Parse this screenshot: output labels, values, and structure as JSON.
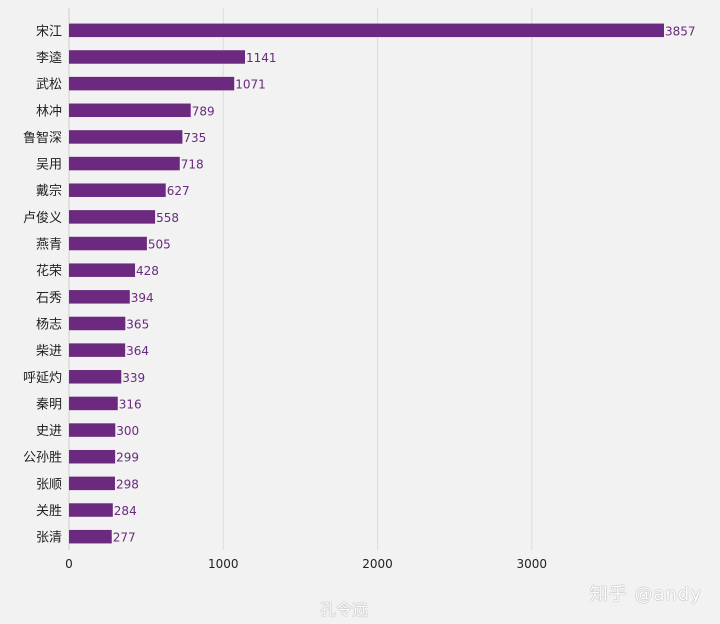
{
  "chart_data": {
    "type": "bar",
    "orientation": "horizontal",
    "categories": [
      "宋江",
      "李逵",
      "武松",
      "林冲",
      "鲁智深",
      "吴用",
      "戴宗",
      "卢俊义",
      "燕青",
      "花荣",
      "石秀",
      "杨志",
      "柴进",
      "呼延灼",
      "秦明",
      "史进",
      "公孙胜",
      "张顺",
      "关胜",
      "张清"
    ],
    "values": [
      3857,
      1141,
      1071,
      789,
      735,
      718,
      627,
      558,
      505,
      428,
      394,
      365,
      364,
      339,
      316,
      300,
      299,
      298,
      284,
      277
    ],
    "xticks": [
      0,
      1000,
      2000,
      3000
    ],
    "xlim": [
      0,
      3857
    ],
    "grid": true,
    "bar_color": "#6b2a80",
    "label_color": "#6a2a7e"
  },
  "watermarks": {
    "zhihu": "知乎 @andy",
    "weibo": "孔令远"
  }
}
